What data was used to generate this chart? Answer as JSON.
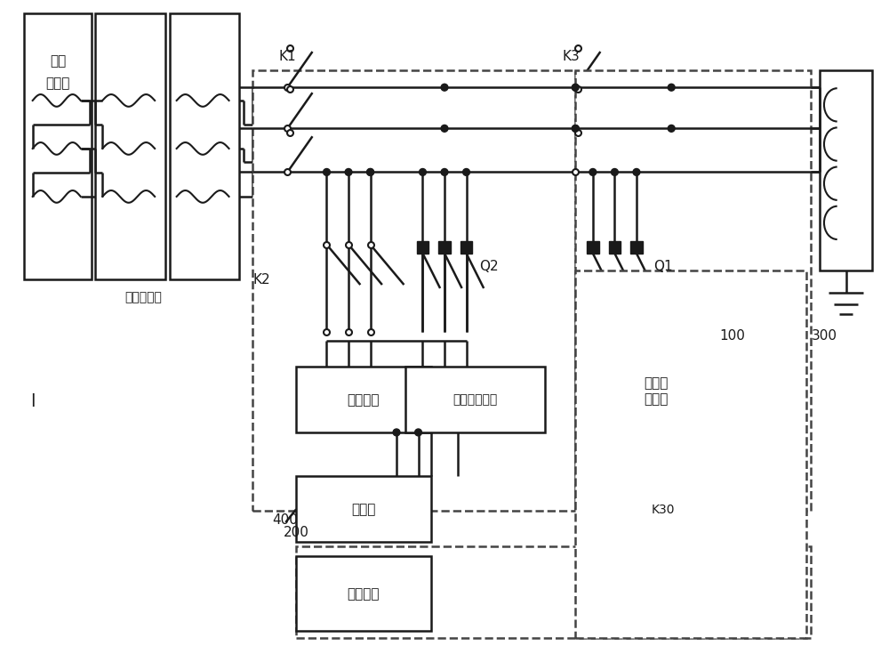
{
  "bg_color": "#ffffff",
  "line_color": "#1a1a1a",
  "dashed_color": "#444444",
  "fig_width": 10.0,
  "fig_height": 7.53,
  "labels": {
    "aux_converter": [
      "辅助",
      "变流器"
    ],
    "aux_transformer": "辅助变压器",
    "K1": "K1",
    "K2": "K2",
    "K3": "K3",
    "Q1": "Q1",
    "Q2": "Q2",
    "label_200": "200",
    "label_100": "100",
    "label_300": "300",
    "label_400": "400",
    "label_l": "l",
    "aux_load": "辅助负载",
    "battery_charger": "蓄电池充电机",
    "power_module": "电源转\n换模块",
    "battery": "蓄电池",
    "control": "控制系统",
    "K30": "K30"
  }
}
